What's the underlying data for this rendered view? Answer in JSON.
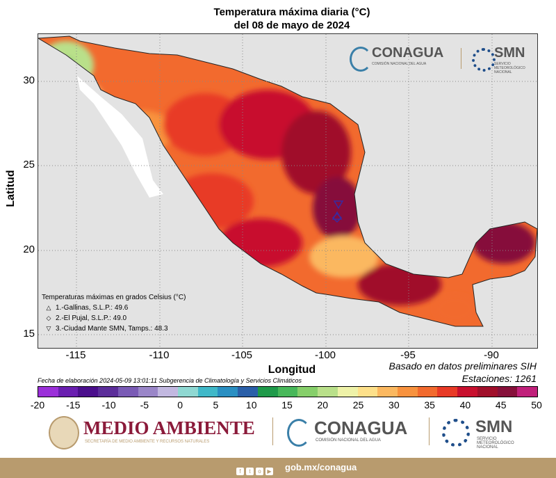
{
  "title_line1": "Temperatura máxima diaria (°C)",
  "title_line2": "del 08 de mayo de 2024",
  "axes": {
    "ylabel": "Latitud",
    "xlabel": "Longitud",
    "yticks": [
      "30",
      "25",
      "20",
      "15"
    ],
    "xticks": [
      "-115",
      "-110",
      "-105",
      "-100",
      "-95",
      "-90"
    ]
  },
  "legend": {
    "title": "Temperaturas máximas en grados Celsius (°C)",
    "items": [
      {
        "symbol": "△",
        "text": "1.-Gallinas, S.L.P.: 49.6"
      },
      {
        "symbol": "◇",
        "text": "2.-El Pujal, S.L.P.: 49.0"
      },
      {
        "symbol": "▽",
        "text": "3.-Ciudad Mante SMN, Tamps.: 48.3"
      }
    ]
  },
  "notes": {
    "basado": "Basado en datos preliminares SIH",
    "estaciones": "Estaciones:  1261",
    "fecha": "Fecha de elaboración 2024-05-09 13:01:11 Subgerencia de Climatología y Servicios Climáticos"
  },
  "colorbar": {
    "ticks": [
      "-20",
      "-15",
      "-10",
      "-5",
      "0",
      "5",
      "10",
      "15",
      "20",
      "25",
      "30",
      "35",
      "40",
      "45",
      "50"
    ],
    "colors": [
      "#9b30d9",
      "#6a1fb0",
      "#4b0f8c",
      "#5c2e9a",
      "#7a5bb5",
      "#9a86c8",
      "#c2b8e0",
      "#8fd8d2",
      "#40b8c8",
      "#2a8fc2",
      "#2a5fa8",
      "#1f9a4a",
      "#48b85a",
      "#86cf6a",
      "#b9e08a",
      "#eef2a8",
      "#fde08a",
      "#fbb860",
      "#f8923e",
      "#f26a2e",
      "#e83a26",
      "#c8102e",
      "#a00f2a",
      "#86103a",
      "#c0207a"
    ]
  },
  "logos": {
    "conagua_top": "CONAGUA",
    "conagua_top_sub": "COMISIÓN NACIONAL DEL AGUA",
    "smn_top": "SMN",
    "smn_top_sub": "SERVICIO METEOROLÓGICO NACIONAL",
    "medio_ambiente": "MEDIO AMBIENTE",
    "medio_ambiente_sub": "SECRETARÍA DE MEDIO AMBIENTE Y RECURSOS NATURALES",
    "conagua_bottom": "CONAGUA",
    "conagua_bottom_sub": "COMISIÓN NACIONAL DEL AGUA",
    "smn_bottom": "SMN",
    "smn_bottom_sub": "SERVICIO METEOROLÓGICO NACIONAL"
  },
  "footer": {
    "url": "gob.mx/conagua"
  }
}
